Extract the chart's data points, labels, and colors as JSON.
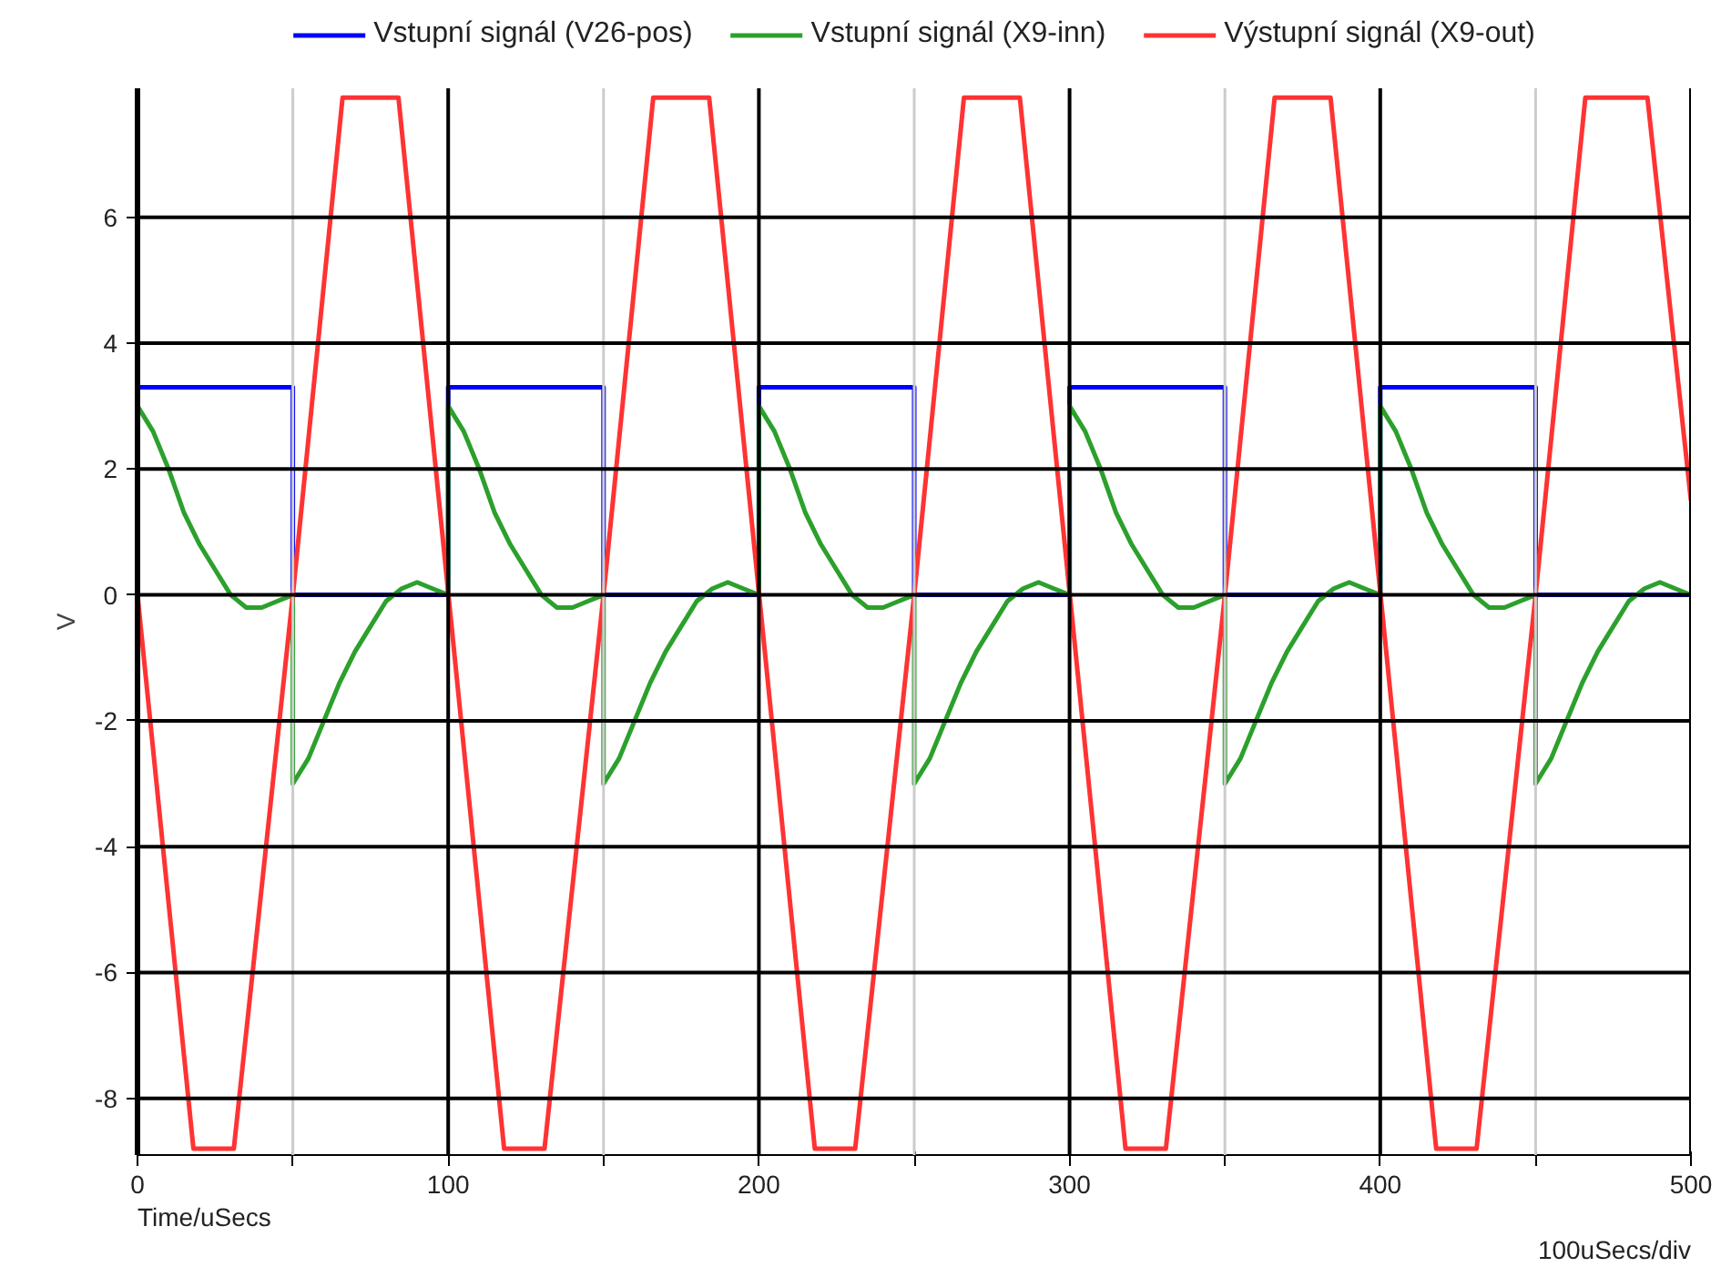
{
  "chart_data": {
    "type": "line",
    "xlabel": "Time/uSecs",
    "ylabel": "V",
    "annotations": [
      "100uSecs/div"
    ],
    "xlim": [
      0,
      500
    ],
    "ylim": [
      -8.9,
      8.05
    ],
    "xticks": [
      0,
      {
        "value": 50,
        "label": null
      },
      100,
      {
        "value": 150,
        "label": null
      },
      200,
      {
        "value": 250,
        "label": null
      },
      300,
      {
        "value": 350,
        "label": null
      },
      400,
      {
        "value": 450,
        "label": null
      },
      500
    ],
    "yticks": [
      -8,
      -6,
      -4,
      -2,
      0,
      2,
      4,
      6
    ],
    "grid": true,
    "legend": "top",
    "line_style": "solid",
    "marker": "none",
    "series": [
      {
        "name": "Vstupní signál (V26-pos)",
        "color": "#0000ff",
        "x": [
          0,
          0,
          50,
          50,
          100,
          100,
          150,
          150,
          200,
          200,
          250,
          250,
          300,
          300,
          350,
          350,
          400,
          400,
          450,
          450,
          500
        ],
        "values": [
          0,
          3.3,
          3.3,
          0,
          0,
          3.3,
          3.3,
          0,
          0,
          3.3,
          3.3,
          0,
          0,
          3.3,
          3.3,
          0,
          0,
          3.3,
          3.3,
          0,
          0
        ]
      },
      {
        "name": "Vstupní signál (X9-inn)",
        "color": "#2ca02c",
        "x": [
          0,
          5,
          10,
          15,
          20,
          25,
          30,
          35,
          40,
          45,
          50,
          50,
          55,
          60,
          65,
          70,
          75,
          80,
          85,
          90,
          95,
          100,
          100,
          105,
          110,
          115,
          120,
          125,
          130,
          135,
          140,
          145,
          150,
          150,
          155,
          160,
          165,
          170,
          175,
          180,
          185,
          190,
          195,
          200,
          200,
          205,
          210,
          215,
          220,
          225,
          230,
          235,
          240,
          245,
          250,
          250,
          255,
          260,
          265,
          270,
          275,
          280,
          285,
          290,
          295,
          300,
          300,
          305,
          310,
          315,
          320,
          325,
          330,
          335,
          340,
          345,
          350,
          350,
          355,
          360,
          365,
          370,
          375,
          380,
          385,
          390,
          395,
          400,
          400,
          405,
          410,
          415,
          420,
          425,
          430,
          435,
          440,
          445,
          450,
          450,
          455,
          460,
          465,
          470,
          475,
          480,
          485,
          490,
          495,
          500
        ],
        "values": [
          3.0,
          2.6,
          2.0,
          1.3,
          0.8,
          0.4,
          0.0,
          -0.2,
          -0.2,
          -0.1,
          0.0,
          -3.0,
          -2.6,
          -2.0,
          -1.4,
          -0.9,
          -0.5,
          -0.1,
          0.1,
          0.2,
          0.1,
          0.0,
          3.0,
          2.6,
          2.0,
          1.3,
          0.8,
          0.4,
          0.0,
          -0.2,
          -0.2,
          -0.1,
          0.0,
          -3.0,
          -2.6,
          -2.0,
          -1.4,
          -0.9,
          -0.5,
          -0.1,
          0.1,
          0.2,
          0.1,
          0.0,
          3.0,
          2.6,
          2.0,
          1.3,
          0.8,
          0.4,
          0.0,
          -0.2,
          -0.2,
          -0.1,
          0.0,
          -3.0,
          -2.6,
          -2.0,
          -1.4,
          -0.9,
          -0.5,
          -0.1,
          0.1,
          0.2,
          0.1,
          0.0,
          3.0,
          2.6,
          2.0,
          1.3,
          0.8,
          0.4,
          0.0,
          -0.2,
          -0.2,
          -0.1,
          0.0,
          -3.0,
          -2.6,
          -2.0,
          -1.4,
          -0.9,
          -0.5,
          -0.1,
          0.1,
          0.2,
          0.1,
          0.0,
          3.0,
          2.6,
          2.0,
          1.3,
          0.8,
          0.4,
          0.0,
          -0.2,
          -0.2,
          -0.1,
          0.0,
          -3.0,
          -2.6,
          -2.0,
          -1.4,
          -0.9,
          -0.5,
          -0.1,
          0.1,
          0.2,
          0.1,
          0.0
        ]
      },
      {
        "name": "Výstupní signál (X9-out)",
        "color": "#ff3333",
        "x": [
          0,
          18,
          31,
          50,
          66,
          84,
          118,
          131,
          150,
          166,
          184,
          218,
          231,
          250,
          266,
          284,
          318,
          331,
          350,
          366,
          384,
          418,
          431,
          450,
          466,
          486,
          500
        ],
        "values": [
          0,
          -8.8,
          -8.8,
          0,
          7.9,
          7.9,
          -8.8,
          -8.8,
          0,
          7.9,
          7.9,
          -8.8,
          -8.8,
          0,
          7.9,
          7.9,
          -8.8,
          -8.8,
          0,
          7.9,
          7.9,
          -8.8,
          -8.8,
          0,
          7.9,
          7.9,
          1.5
        ]
      }
    ]
  }
}
